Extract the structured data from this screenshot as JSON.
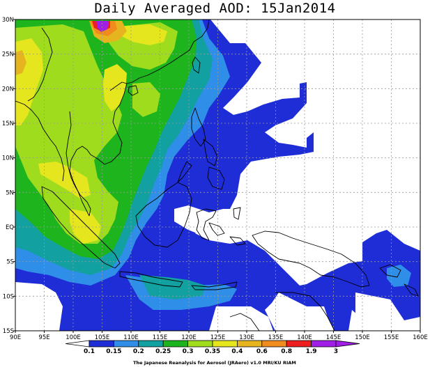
{
  "title": "Daily Averaged AOD: 15Jan2014",
  "credit": "The Japanese Reanalysis for Aerosol (JRAero) v1.0 MRI/KU RIAM",
  "lon_ticks": [
    "90E",
    "95E",
    "100E",
    "105E",
    "110E",
    "115E",
    "120E",
    "125E",
    "130E",
    "135E",
    "140E",
    "145E",
    "150E",
    "155E",
    "160E"
  ],
  "lat_ticks": [
    "30N",
    "25N",
    "20N",
    "15N",
    "10N",
    "5N",
    "EQ",
    "5S",
    "10S",
    "15S"
  ],
  "colorbar": {
    "levels": [
      "0.1",
      "0.15",
      "0.2",
      "0.25",
      "0.3",
      "0.35",
      "0.4",
      "0.6",
      "0.8",
      "1.9",
      "3"
    ],
    "colors": [
      "#ffffff",
      "#1e2dd6",
      "#2f8fe8",
      "#12a0a0",
      "#1eb41e",
      "#a0dc1e",
      "#e6e61e",
      "#e6b41e",
      "#f08c1e",
      "#ec1e1e",
      "#a01ee6"
    ]
  },
  "map": {
    "lon_range": [
      90,
      160
    ],
    "lat_range": [
      -15,
      30
    ],
    "colors": {
      "c015": "#1e2dd6",
      "c02": "#2f8fe8",
      "c025": "#12a0a0",
      "c03": "#1eb41e",
      "c035": "#a0dc1e",
      "c04": "#e6e61e",
      "c06": "#e6b41e",
      "c08": "#f08c1e",
      "c19": "#ec1e1e",
      "c3": "#a01ee6"
    }
  }
}
